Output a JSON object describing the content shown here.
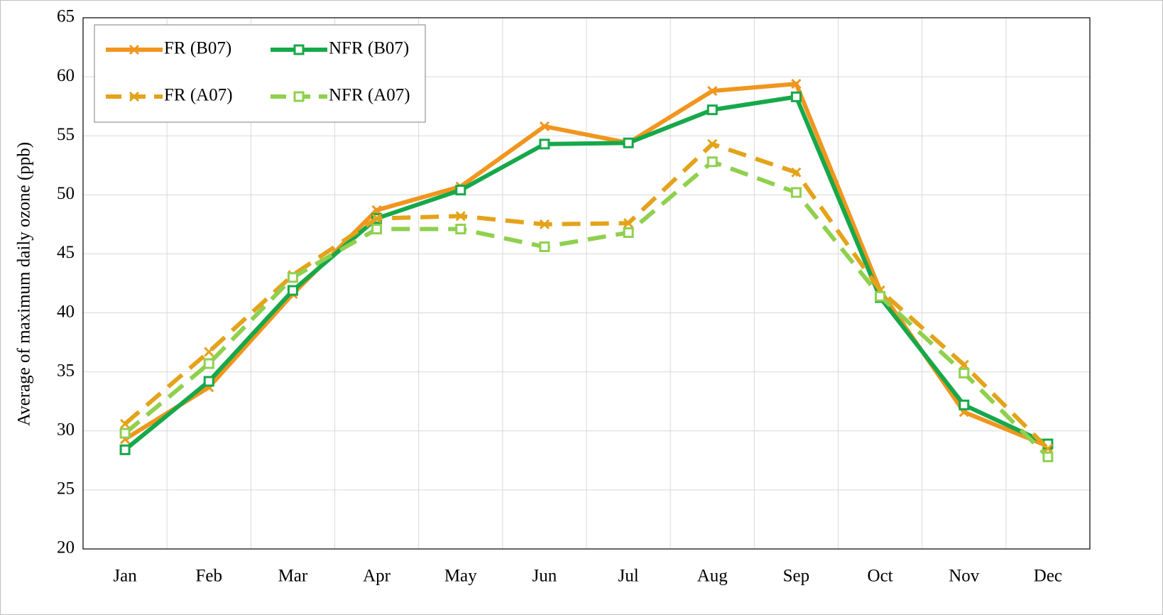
{
  "chart_data": {
    "type": "line",
    "y_label": "Average of maximum daily ozone (ppb)",
    "categories": [
      "Jan",
      "Feb",
      "Mar",
      "Apr",
      "May",
      "Jun",
      "Jul",
      "Aug",
      "Sep",
      "Oct",
      "Nov",
      "Dec"
    ],
    "series": [
      {
        "name": "FR (B07)",
        "color": "#f0961e",
        "dash": "solid",
        "marker": "x",
        "values": [
          29.3,
          33.7,
          41.6,
          48.7,
          50.7,
          55.8,
          54.4,
          58.8,
          59.4,
          41.9,
          31.6,
          28.7
        ]
      },
      {
        "name": "NFR (B07)",
        "color": "#16a84a",
        "dash": "solid",
        "marker": "square",
        "values": [
          28.4,
          34.2,
          41.9,
          48.0,
          50.4,
          54.3,
          54.4,
          57.2,
          58.3,
          41.3,
          32.2,
          28.9
        ]
      },
      {
        "name": "FR (A07)",
        "color": "#e3a31a",
        "dash": "dashed",
        "marker": "x",
        "values": [
          30.6,
          36.7,
          43.2,
          48.0,
          48.2,
          47.5,
          47.6,
          54.3,
          51.9,
          41.9,
          35.6,
          28.5
        ]
      },
      {
        "name": "NFR (A07)",
        "color": "#8fd04e",
        "dash": "dashed",
        "marker": "square",
        "values": [
          29.8,
          35.7,
          43.0,
          47.1,
          47.1,
          45.6,
          46.8,
          52.8,
          50.2,
          41.4,
          34.9,
          27.8
        ]
      }
    ],
    "ylim": [
      20,
      65
    ],
    "yticks": [
      20,
      25,
      30,
      35,
      40,
      45,
      50,
      55,
      60,
      65
    ],
    "grid": true,
    "legend": "upper left"
  }
}
